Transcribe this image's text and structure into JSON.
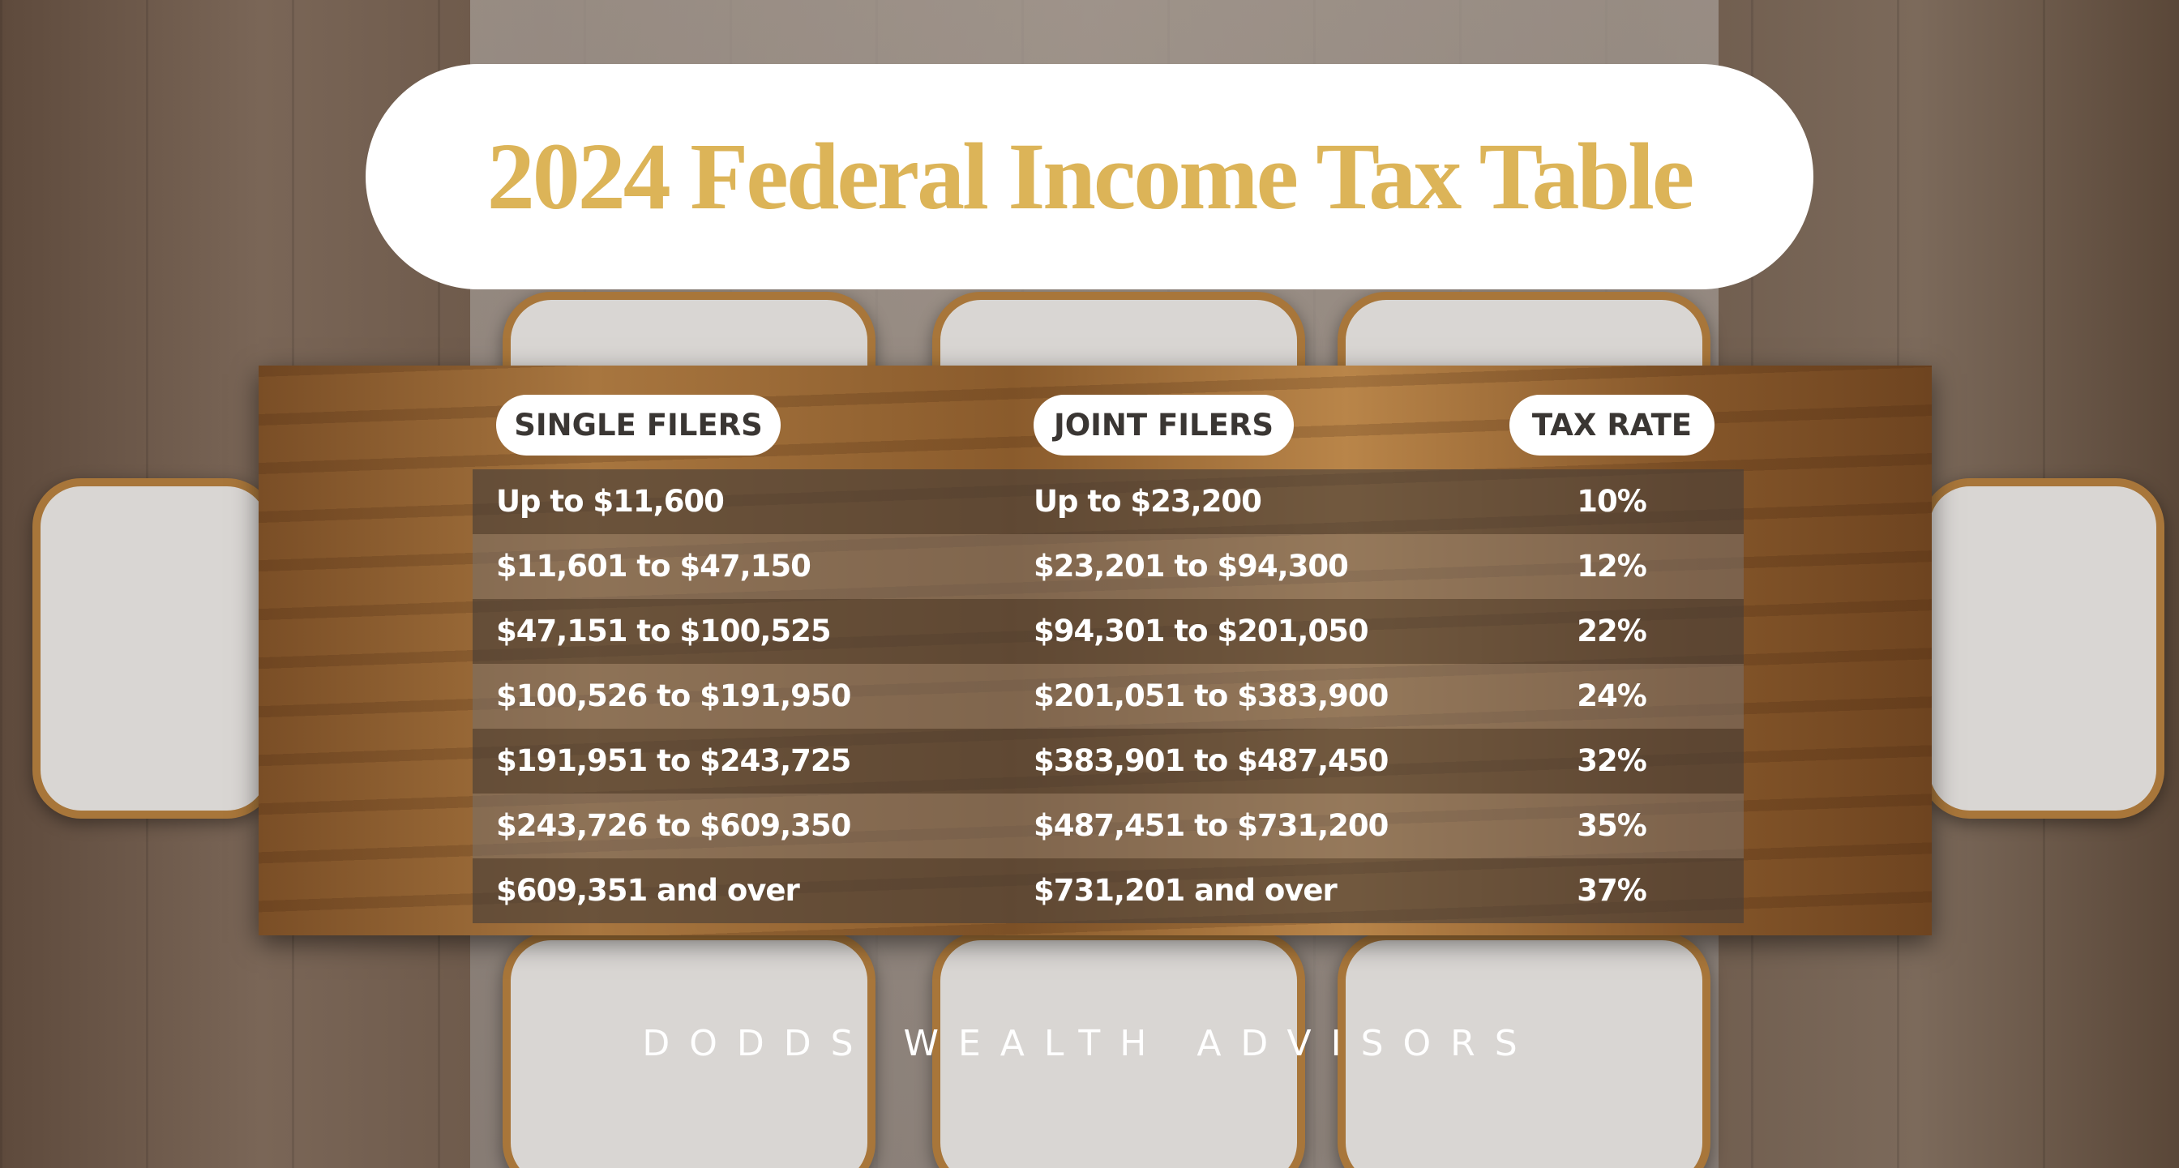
{
  "header": {
    "title": "2024 Federal Income Tax Table"
  },
  "table": {
    "headers": [
      "SINGLE FILERS",
      "JOINT FILERS",
      "TAX RATE"
    ],
    "rows": [
      [
        "Up to $11,600",
        "Up to $23,200",
        "10%"
      ],
      [
        "$11,601 to $47,150",
        "$23,201 to $94,300",
        "12%"
      ],
      [
        "$47,151 to $100,525",
        "$94,301 to $201,050",
        "22%"
      ],
      [
        "$100,526 to $191,950",
        "$201,051 to $383,900",
        "24%"
      ],
      [
        "$191,951 to $243,725",
        "$383,901 to $487,450",
        "32%"
      ],
      [
        "$243,726 to $609,350",
        "$487,451 to $731,200",
        "35%"
      ],
      [
        "$609,351 and over",
        "$731,201 and over",
        "37%"
      ]
    ]
  },
  "footer": {
    "text": "DODDS WEALTH ADVISORS"
  }
}
